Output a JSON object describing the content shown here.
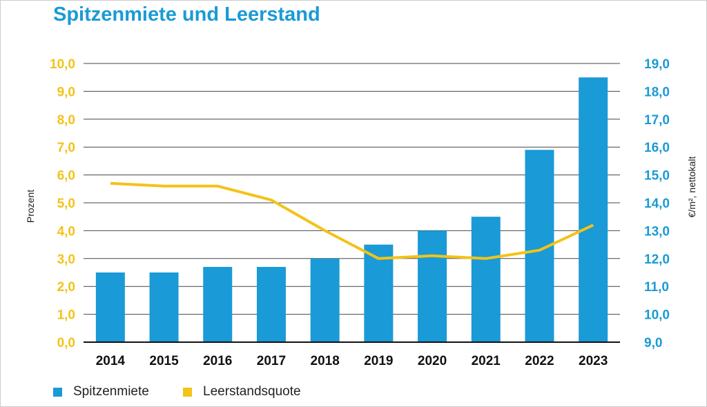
{
  "chart_data": {
    "type": "bar+line",
    "title": "Spitzenmiete und Leerstand",
    "categories": [
      "2014",
      "2015",
      "2016",
      "2017",
      "2018",
      "2019",
      "2020",
      "2021",
      "2022",
      "2023"
    ],
    "series": [
      {
        "name": "Spitzenmiete",
        "type": "bar",
        "axis": "right",
        "color": "#1a9ad6",
        "values": [
          11.5,
          11.5,
          11.7,
          11.7,
          12.0,
          12.5,
          13.0,
          13.5,
          15.9,
          18.5
        ]
      },
      {
        "name": "Leerstandsquote",
        "type": "line",
        "axis": "left",
        "color": "#f2c318",
        "values": [
          5.7,
          5.6,
          5.6,
          5.1,
          4.0,
          3.0,
          3.1,
          3.0,
          3.3,
          4.2
        ]
      }
    ],
    "y_left": {
      "label": "Prozent",
      "range": [
        0,
        10
      ],
      "ticks": [
        "0,0",
        "1,0",
        "2,0",
        "3,0",
        "4,0",
        "5,0",
        "6,0",
        "7,0",
        "8,0",
        "9,0",
        "10,0"
      ],
      "color": "#f2c318"
    },
    "y_right": {
      "label": "€/m², nettokalt",
      "range": [
        9,
        19
      ],
      "ticks": [
        "9,0",
        "10,0",
        "11,0",
        "12,0",
        "13,0",
        "14,0",
        "15,0",
        "16,0",
        "17,0",
        "18,0",
        "19,0"
      ],
      "color": "#1a9ad6"
    },
    "grid": true,
    "legend_position": "bottom-left"
  }
}
